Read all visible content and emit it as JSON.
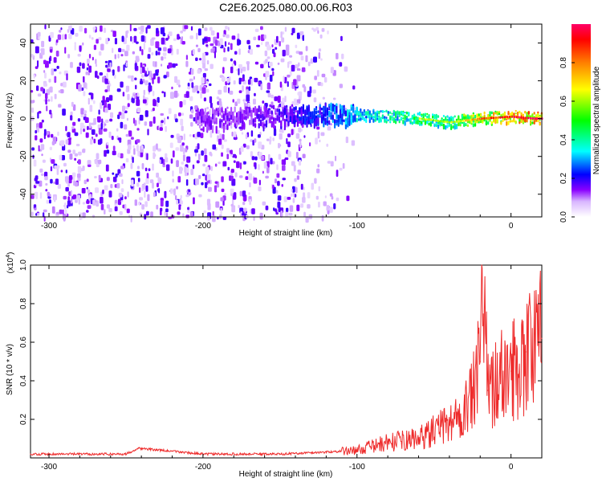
{
  "title": "C2E6.2025.080.00.06.R03",
  "chart_data": [
    {
      "type": "heatmap",
      "xlabel": "Height of straight line (km)",
      "ylabel": "Frequency (Hz)",
      "xlim": [
        -312,
        20
      ],
      "ylim": [
        -52,
        50
      ],
      "xticks": [
        -300,
        -200,
        -100,
        0
      ],
      "yticks": [
        -40,
        -20,
        0,
        20,
        40
      ],
      "colorbar": {
        "label": "Normalized spectral amplitude",
        "range": [
          0,
          1
        ],
        "ticks": [
          0.0,
          0.2,
          0.4,
          0.6,
          0.8
        ],
        "colormap": [
          "#ffffff",
          "#8a00ff",
          "#0000ff",
          "#00ffff",
          "#00ff00",
          "#ffff00",
          "#ff7f00",
          "#ff0000",
          "#ff0066"
        ]
      },
      "description_points": {
        "heights": [
          -300,
          -250,
          -200,
          -150,
          -120,
          -100,
          -80,
          -60,
          -40,
          -20,
          0,
          15
        ],
        "center_frequency": [
          0,
          0,
          0,
          2,
          3,
          2,
          1,
          0,
          -2,
          0,
          1,
          0
        ],
        "peak_amplitude": [
          0.12,
          0.14,
          0.16,
          0.2,
          0.3,
          0.4,
          0.45,
          0.55,
          0.5,
          0.75,
          0.85,
          0.9
        ]
      }
    },
    {
      "type": "line",
      "series": [
        {
          "color": "#ee2b2b"
        }
      ],
      "xlabel": "Height of straight line (km)",
      "ylabel": "SNR (10 * v/v)",
      "yscale_note": "(x10^4)",
      "xlim": [
        -312,
        20
      ],
      "ylim": [
        0,
        1.0
      ],
      "xticks": [
        -300,
        -200,
        -100,
        0
      ],
      "yticks": [
        0.2,
        0.4,
        0.6,
        0.8,
        1.0
      ],
      "x": [
        -312,
        -250,
        -242,
        -200,
        -150,
        -120,
        -100,
        -80,
        -60,
        -40,
        -30,
        -25,
        -20,
        -19,
        -15,
        -10,
        0,
        10,
        20
      ],
      "y": [
        0.02,
        0.02,
        0.05,
        0.02,
        0.02,
        0.03,
        0.04,
        0.08,
        0.1,
        0.18,
        0.25,
        0.32,
        0.5,
        1.0,
        0.35,
        0.4,
        0.45,
        0.55,
        0.62
      ]
    }
  ]
}
